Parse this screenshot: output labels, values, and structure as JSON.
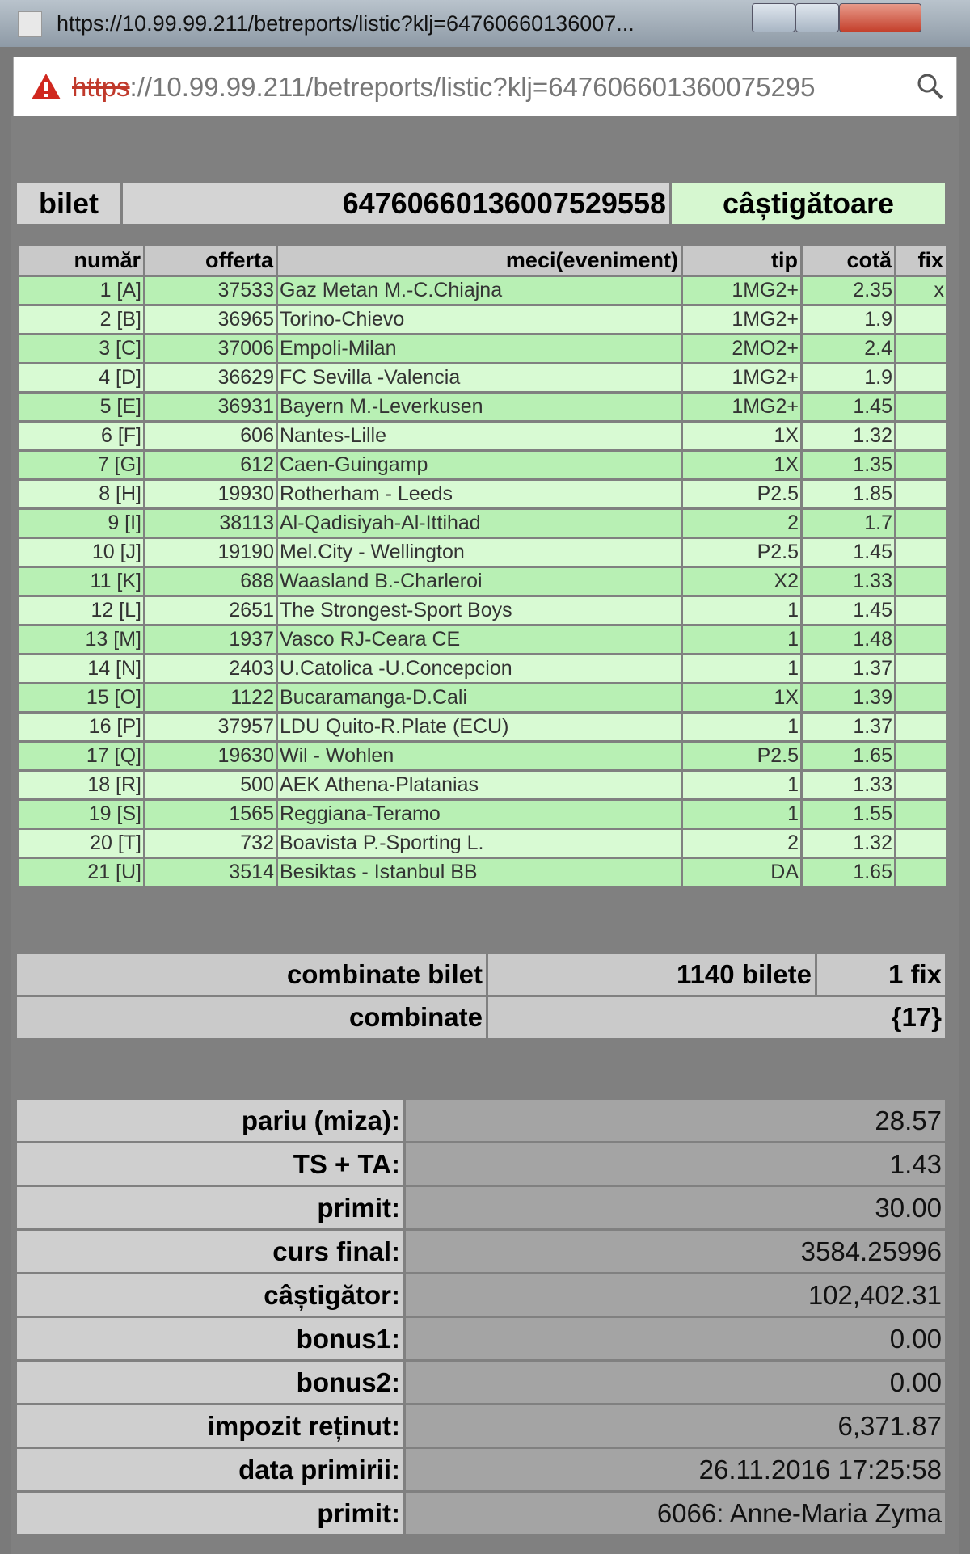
{
  "window": {
    "title": "https://10.99.99.211/betreports/listic?klj=64760660136007..."
  },
  "address_bar": {
    "scheme": "https",
    "rest": "://10.99.99.211/betreports/listic?klj=647606601360075295"
  },
  "ticket": {
    "label": "bilet",
    "number": "64760660136007529558",
    "status": "câștigătoare"
  },
  "table": {
    "headers": [
      "număr",
      "offerta",
      "meci(eveniment)",
      "tip",
      "cotă",
      "fix"
    ],
    "rows": [
      [
        "1 [A]",
        "37533",
        "Gaz Metan M.-C.Chiajna",
        "1MG2+",
        "2.35",
        "x"
      ],
      [
        "2 [B]",
        "36965",
        "Torino-Chievo",
        "1MG2+",
        "1.9"
      ],
      [
        "3 [C]",
        "37006",
        "Empoli-Milan",
        "2MO2+",
        "2.4"
      ],
      [
        "4 [D]",
        "36629",
        "FC Sevilla -Valencia",
        "1MG2+",
        "1.9"
      ],
      [
        "5 [E]",
        "36931",
        "Bayern M.-Leverkusen",
        "1MG2+",
        "1.45"
      ],
      [
        "6 [F]",
        "606",
        "Nantes-Lille",
        "1X",
        "1.32"
      ],
      [
        "7 [G]",
        "612",
        "Caen-Guingamp",
        "1X",
        "1.35"
      ],
      [
        "8 [H]",
        "19930",
        "Rotherham - Leeds",
        "P2.5",
        "1.85"
      ],
      [
        "9 [I]",
        "38113",
        "Al-Qadisiyah-Al-Ittihad",
        "2",
        "1.7"
      ],
      [
        "10 [J]",
        "19190",
        "Mel.City - Wellington",
        "P2.5",
        "1.45"
      ],
      [
        "11 [K]",
        "688",
        "Waasland B.-Charleroi",
        "X2",
        "1.33"
      ],
      [
        "12 [L]",
        "2651",
        "The Strongest-Sport Boys",
        "1",
        "1.45"
      ],
      [
        "13 [M]",
        "1937",
        "Vasco RJ-Ceara CE",
        "1",
        "1.48"
      ],
      [
        "14 [N]",
        "2403",
        "U.Catolica -U.Concepcion",
        "1",
        "1.37"
      ],
      [
        "15 [O]",
        "1122",
        "Bucaramanga-D.Cali",
        "1X",
        "1.39"
      ],
      [
        "16 [P]",
        "37957",
        "LDU Quito-R.Plate (ECU)",
        "1",
        "1.37"
      ],
      [
        "17 [Q]",
        "19630",
        "Wil - Wohlen",
        "P2.5",
        "1.65"
      ],
      [
        "18 [R]",
        "500",
        "AEK Athena-Platanias",
        "1",
        "1.33"
      ],
      [
        "19 [S]",
        "1565",
        "Reggiana-Teramo",
        "1",
        "1.55"
      ],
      [
        "20 [T]",
        "732",
        "Boavista P.-Sporting L.",
        "2",
        "1.32"
      ],
      [
        "21 [U]",
        "3514",
        "Besiktas - Istanbul BB",
        "DA",
        "1.65"
      ]
    ]
  },
  "combinations": [
    {
      "label": "combinate bilet",
      "value": "1140 bilete",
      "extra": "1 fix"
    },
    {
      "label": "combinate",
      "value": "{17}"
    }
  ],
  "summary": [
    [
      "pariu (miza):",
      "28.57"
    ],
    [
      "TS + TA:",
      "1.43"
    ],
    [
      "primit:",
      "30.00"
    ],
    [
      "curs final:",
      "3584.25996"
    ],
    [
      "câștigător:",
      "102,402.31"
    ],
    [
      "bonus1:",
      "0.00"
    ],
    [
      "bonus2:",
      "0.00"
    ],
    [
      "impozit reținut:",
      "6,371.87"
    ],
    [
      "data primirii:",
      "26.11.2016 17:25:58"
    ],
    [
      "primit:",
      "6066: Anne-Maria Zyma"
    ]
  ]
}
